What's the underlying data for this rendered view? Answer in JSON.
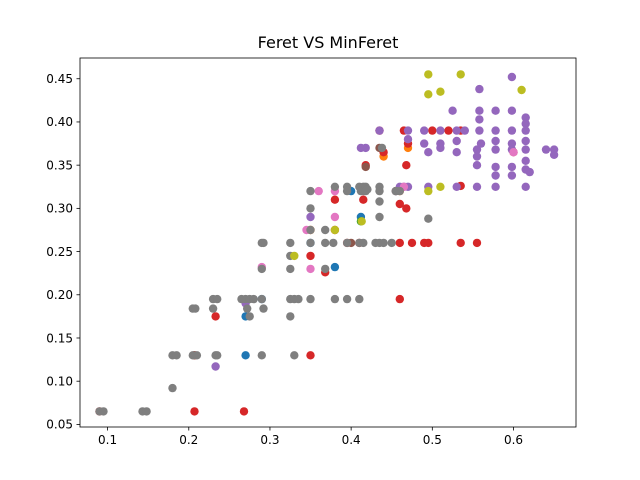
{
  "chart_data": {
    "type": "scatter",
    "title": "Feret VS MinFeret",
    "xlabel": "",
    "ylabel": "",
    "xlim": [
      0.066,
      0.677
    ],
    "ylim": [
      0.047,
      0.474
    ],
    "xticks": [
      0.1,
      0.2,
      0.3,
      0.4,
      0.5,
      0.6
    ],
    "xtick_labels": [
      "0.1",
      "0.2",
      "0.3",
      "0.4",
      "0.5",
      "0.6"
    ],
    "yticks": [
      0.05,
      0.1,
      0.15,
      0.2,
      0.25,
      0.3,
      0.35,
      0.4,
      0.45
    ],
    "ytick_labels": [
      "0.05",
      "0.10",
      "0.15",
      "0.20",
      "0.25",
      "0.30",
      "0.35",
      "0.40",
      "0.45"
    ],
    "grid": false,
    "legend": "none",
    "series": [
      {
        "color": "#1f77b4",
        "points": [
          [
            0.27,
            0.175
          ],
          [
            0.27,
            0.13
          ],
          [
            0.35,
            0.26
          ],
          [
            0.38,
            0.232
          ],
          [
            0.4,
            0.32
          ],
          [
            0.412,
            0.29
          ],
          [
            0.29,
            0.195
          ]
        ]
      },
      {
        "color": "#ff7f0e",
        "points": [
          [
            0.44,
            0.36
          ],
          [
            0.47,
            0.37
          ],
          [
            0.46,
            0.32
          ],
          [
            0.35,
            0.275
          ]
        ]
      },
      {
        "color": "#2ca02c",
        "points": [
          [
            0.412,
            0.285
          ]
        ]
      },
      {
        "color": "#d62728",
        "points": [
          [
            0.09,
            0.065
          ],
          [
            0.207,
            0.065
          ],
          [
            0.207,
            0.13
          ],
          [
            0.233,
            0.175
          ],
          [
            0.268,
            0.065
          ],
          [
            0.35,
            0.13
          ],
          [
            0.35,
            0.245
          ],
          [
            0.368,
            0.226
          ],
          [
            0.38,
            0.31
          ],
          [
            0.38,
            0.275
          ],
          [
            0.395,
            0.26
          ],
          [
            0.415,
            0.31
          ],
          [
            0.418,
            0.35
          ],
          [
            0.41,
            0.26
          ],
          [
            0.435,
            0.39
          ],
          [
            0.44,
            0.365
          ],
          [
            0.46,
            0.26
          ],
          [
            0.46,
            0.195
          ],
          [
            0.46,
            0.305
          ],
          [
            0.465,
            0.39
          ],
          [
            0.468,
            0.35
          ],
          [
            0.468,
            0.3
          ],
          [
            0.47,
            0.375
          ],
          [
            0.475,
            0.26
          ],
          [
            0.49,
            0.26
          ],
          [
            0.495,
            0.26
          ],
          [
            0.5,
            0.39
          ],
          [
            0.52,
            0.39
          ],
          [
            0.535,
            0.39
          ],
          [
            0.535,
            0.326
          ],
          [
            0.535,
            0.26
          ],
          [
            0.555,
            0.26
          ],
          [
            0.6,
            0.365
          ]
        ]
      },
      {
        "color": "#9467bd",
        "points": [
          [
            0.233,
            0.117
          ],
          [
            0.27,
            0.19
          ],
          [
            0.35,
            0.29
          ],
          [
            0.412,
            0.37
          ],
          [
            0.418,
            0.37
          ],
          [
            0.435,
            0.39
          ],
          [
            0.455,
            0.32
          ],
          [
            0.46,
            0.325
          ],
          [
            0.465,
            0.325
          ],
          [
            0.47,
            0.325
          ],
          [
            0.47,
            0.38
          ],
          [
            0.47,
            0.39
          ],
          [
            0.49,
            0.39
          ],
          [
            0.49,
            0.375
          ],
          [
            0.495,
            0.365
          ],
          [
            0.495,
            0.325
          ],
          [
            0.51,
            0.39
          ],
          [
            0.51,
            0.375
          ],
          [
            0.51,
            0.37
          ],
          [
            0.525,
            0.413
          ],
          [
            0.53,
            0.39
          ],
          [
            0.53,
            0.378
          ],
          [
            0.53,
            0.365
          ],
          [
            0.53,
            0.325
          ],
          [
            0.54,
            0.39
          ],
          [
            0.555,
            0.368
          ],
          [
            0.555,
            0.36
          ],
          [
            0.555,
            0.35
          ],
          [
            0.555,
            0.325
          ],
          [
            0.558,
            0.438
          ],
          [
            0.558,
            0.413
          ],
          [
            0.558,
            0.403
          ],
          [
            0.558,
            0.39
          ],
          [
            0.56,
            0.375
          ],
          [
            0.578,
            0.413
          ],
          [
            0.578,
            0.39
          ],
          [
            0.578,
            0.378
          ],
          [
            0.578,
            0.368
          ],
          [
            0.578,
            0.348
          ],
          [
            0.578,
            0.338
          ],
          [
            0.578,
            0.325
          ],
          [
            0.598,
            0.452
          ],
          [
            0.598,
            0.413
          ],
          [
            0.598,
            0.39
          ],
          [
            0.598,
            0.375
          ],
          [
            0.598,
            0.368
          ],
          [
            0.598,
            0.348
          ],
          [
            0.598,
            0.338
          ],
          [
            0.615,
            0.405
          ],
          [
            0.615,
            0.398
          ],
          [
            0.615,
            0.39
          ],
          [
            0.615,
            0.378
          ],
          [
            0.615,
            0.368
          ],
          [
            0.615,
            0.355
          ],
          [
            0.615,
            0.345
          ],
          [
            0.615,
            0.325
          ],
          [
            0.62,
            0.342
          ],
          [
            0.64,
            0.368
          ],
          [
            0.65,
            0.368
          ],
          [
            0.65,
            0.362
          ]
        ]
      },
      {
        "color": "#8c564b",
        "points": [
          [
            0.207,
            0.13
          ],
          [
            0.418,
            0.348
          ],
          [
            0.435,
            0.37
          ],
          [
            0.4,
            0.26
          ],
          [
            0.455,
            0.32
          ]
        ]
      },
      {
        "color": "#e377c2",
        "points": [
          [
            0.29,
            0.232
          ],
          [
            0.345,
            0.275
          ],
          [
            0.35,
            0.23
          ],
          [
            0.36,
            0.32
          ],
          [
            0.38,
            0.29
          ],
          [
            0.38,
            0.32
          ],
          [
            0.465,
            0.325
          ],
          [
            0.6,
            0.365
          ]
        ]
      },
      {
        "color": "#7f7f7f",
        "points": [
          [
            0.09,
            0.065
          ],
          [
            0.095,
            0.065
          ],
          [
            0.143,
            0.065
          ],
          [
            0.148,
            0.065
          ],
          [
            0.18,
            0.13
          ],
          [
            0.185,
            0.13
          ],
          [
            0.18,
            0.092
          ],
          [
            0.205,
            0.184
          ],
          [
            0.208,
            0.184
          ],
          [
            0.205,
            0.13
          ],
          [
            0.21,
            0.13
          ],
          [
            0.23,
            0.195
          ],
          [
            0.235,
            0.195
          ],
          [
            0.23,
            0.184
          ],
          [
            0.233,
            0.13
          ],
          [
            0.235,
            0.13
          ],
          [
            0.265,
            0.195
          ],
          [
            0.27,
            0.195
          ],
          [
            0.275,
            0.195
          ],
          [
            0.28,
            0.195
          ],
          [
            0.272,
            0.184
          ],
          [
            0.275,
            0.175
          ],
          [
            0.29,
            0.26
          ],
          [
            0.292,
            0.26
          ],
          [
            0.29,
            0.23
          ],
          [
            0.29,
            0.195
          ],
          [
            0.292,
            0.184
          ],
          [
            0.29,
            0.13
          ],
          [
            0.325,
            0.26
          ],
          [
            0.325,
            0.245
          ],
          [
            0.325,
            0.23
          ],
          [
            0.325,
            0.195
          ],
          [
            0.325,
            0.175
          ],
          [
            0.33,
            0.195
          ],
          [
            0.335,
            0.195
          ],
          [
            0.33,
            0.13
          ],
          [
            0.35,
            0.32
          ],
          [
            0.35,
            0.3
          ],
          [
            0.35,
            0.275
          ],
          [
            0.35,
            0.26
          ],
          [
            0.35,
            0.195
          ],
          [
            0.368,
            0.275
          ],
          [
            0.368,
            0.26
          ],
          [
            0.368,
            0.23
          ],
          [
            0.378,
            0.26
          ],
          [
            0.38,
            0.325
          ],
          [
            0.38,
            0.195
          ],
          [
            0.395,
            0.325
          ],
          [
            0.395,
            0.32
          ],
          [
            0.395,
            0.26
          ],
          [
            0.395,
            0.195
          ],
          [
            0.41,
            0.325
          ],
          [
            0.41,
            0.26
          ],
          [
            0.41,
            0.195
          ],
          [
            0.412,
            0.32
          ],
          [
            0.415,
            0.325
          ],
          [
            0.415,
            0.32
          ],
          [
            0.415,
            0.26
          ],
          [
            0.418,
            0.325
          ],
          [
            0.418,
            0.32
          ],
          [
            0.42,
            0.322
          ],
          [
            0.43,
            0.26
          ],
          [
            0.435,
            0.325
          ],
          [
            0.435,
            0.32
          ],
          [
            0.435,
            0.308
          ],
          [
            0.435,
            0.29
          ],
          [
            0.435,
            0.26
          ],
          [
            0.438,
            0.37
          ],
          [
            0.44,
            0.26
          ],
          [
            0.45,
            0.26
          ],
          [
            0.455,
            0.32
          ],
          [
            0.46,
            0.32
          ],
          [
            0.495,
            0.288
          ]
        ]
      },
      {
        "color": "#bcbd22",
        "points": [
          [
            0.33,
            0.245
          ],
          [
            0.38,
            0.275
          ],
          [
            0.413,
            0.285
          ],
          [
            0.495,
            0.455
          ],
          [
            0.495,
            0.432
          ],
          [
            0.495,
            0.32
          ],
          [
            0.51,
            0.435
          ],
          [
            0.51,
            0.325
          ],
          [
            0.535,
            0.455
          ],
          [
            0.61,
            0.437
          ]
        ]
      }
    ]
  }
}
